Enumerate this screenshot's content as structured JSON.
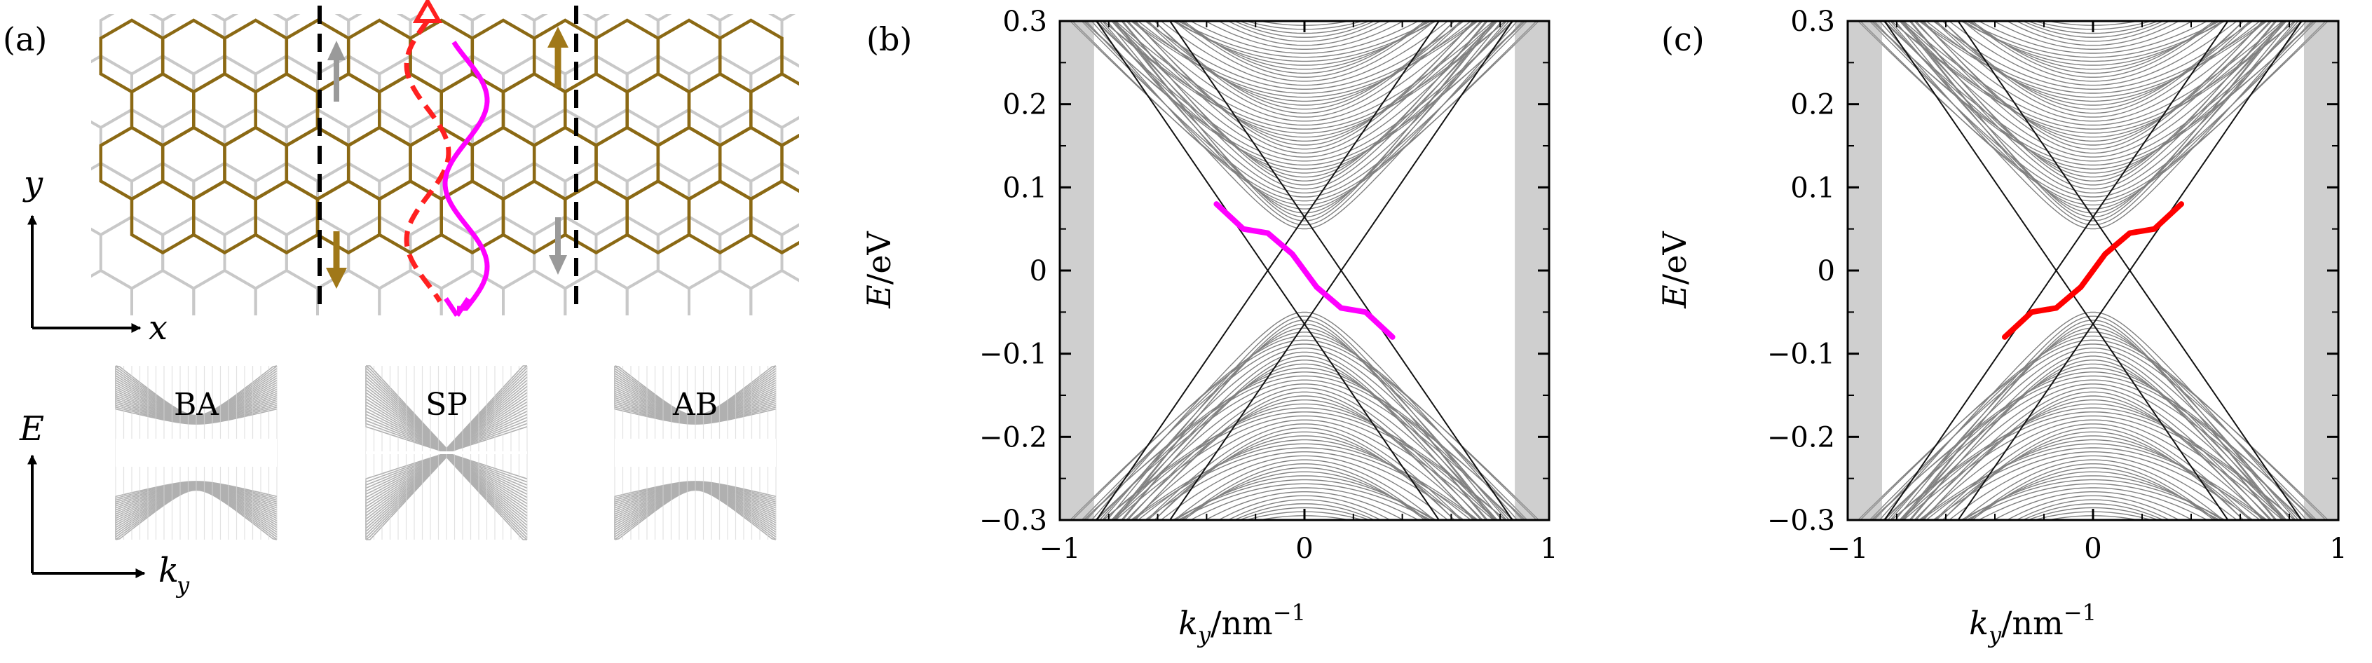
{
  "panels": {
    "a": {
      "label": "(a)",
      "axis_y": "y",
      "axis_x": "x",
      "axis_E": "E",
      "axis_k": "k",
      "axis_k_sub": "y",
      "band_labels": [
        "BA",
        "SP",
        "AB"
      ],
      "colors": {
        "top_layer": "#8B6914",
        "bottom_layer": "#c8c8c8",
        "dashed_path": "#ff2020",
        "solid_path": "#ff00ff",
        "arrow_brown": "#a07818",
        "arrow_gray": "#9a9a9a"
      }
    },
    "b": {
      "label": "(b)",
      "xlabel_main": "k",
      "xlabel_sub": "y",
      "xlabel_unit": "/nm",
      "xlabel_exp": "−1",
      "ylabel_main": "E",
      "ylabel_unit": "/eV",
      "xticks": [
        "−1",
        "0",
        "1"
      ],
      "yticks": [
        "0.3",
        "0.2",
        "0.1",
        "0",
        "−0.1",
        "−0.2",
        "−0.3"
      ],
      "edge_state_color": "#ff00ff"
    },
    "c": {
      "label": "(c)",
      "xlabel_main": "k",
      "xlabel_sub": "y",
      "xlabel_unit": "/nm",
      "xlabel_exp": "−1",
      "ylabel_main": "E",
      "ylabel_unit": "/eV",
      "xticks": [
        "−1",
        "0",
        "1"
      ],
      "yticks": [
        "0.3",
        "0.2",
        "0.1",
        "0",
        "−0.1",
        "−0.2",
        "−0.3"
      ],
      "edge_state_color": "#ff0000"
    }
  },
  "chart_data": [
    {
      "type": "line",
      "panel": "b",
      "xlabel": "k_y/nm^-1",
      "ylabel": "E/eV",
      "xlim": [
        -1,
        1
      ],
      "ylim": [
        -0.3,
        0.3
      ],
      "gap_half_width_eV": 0.05,
      "bulk_band_color": "#808080",
      "crossing_lines": [
        {
          "x": [
            -0.85,
            0.55
          ],
          "y": [
            0.3,
            -0.3
          ]
        },
        {
          "x": [
            -0.55,
            0.85
          ],
          "y": [
            0.3,
            -0.3
          ]
        },
        {
          "x": [
            -0.85,
            0.55
          ],
          "y": [
            -0.3,
            0.3
          ]
        },
        {
          "x": [
            -0.55,
            0.85
          ],
          "y": [
            -0.3,
            0.3
          ]
        }
      ],
      "edge_state": {
        "x": [
          -0.36,
          -0.25,
          -0.15,
          -0.05,
          0.05,
          0.15,
          0.25,
          0.36
        ],
        "y": [
          0.08,
          0.05,
          0.045,
          0.02,
          -0.02,
          -0.045,
          -0.05,
          -0.08
        ]
      }
    },
    {
      "type": "line",
      "panel": "c",
      "xlabel": "k_y/nm^-1",
      "ylabel": "E/eV",
      "xlim": [
        -1,
        1
      ],
      "ylim": [
        -0.3,
        0.3
      ],
      "gap_half_width_eV": 0.05,
      "bulk_band_color": "#808080",
      "crossing_lines": [
        {
          "x": [
            -0.85,
            0.55
          ],
          "y": [
            0.3,
            -0.3
          ]
        },
        {
          "x": [
            -0.55,
            0.85
          ],
          "y": [
            0.3,
            -0.3
          ]
        },
        {
          "x": [
            -0.85,
            0.55
          ],
          "y": [
            -0.3,
            0.3
          ]
        },
        {
          "x": [
            -0.55,
            0.85
          ],
          "y": [
            -0.3,
            0.3
          ]
        }
      ],
      "edge_state": {
        "x": [
          -0.36,
          -0.25,
          -0.15,
          -0.05,
          0.05,
          0.15,
          0.25,
          0.36
        ],
        "y": [
          -0.08,
          -0.05,
          -0.045,
          -0.02,
          0.02,
          0.045,
          0.05,
          0.08
        ]
      }
    }
  ]
}
